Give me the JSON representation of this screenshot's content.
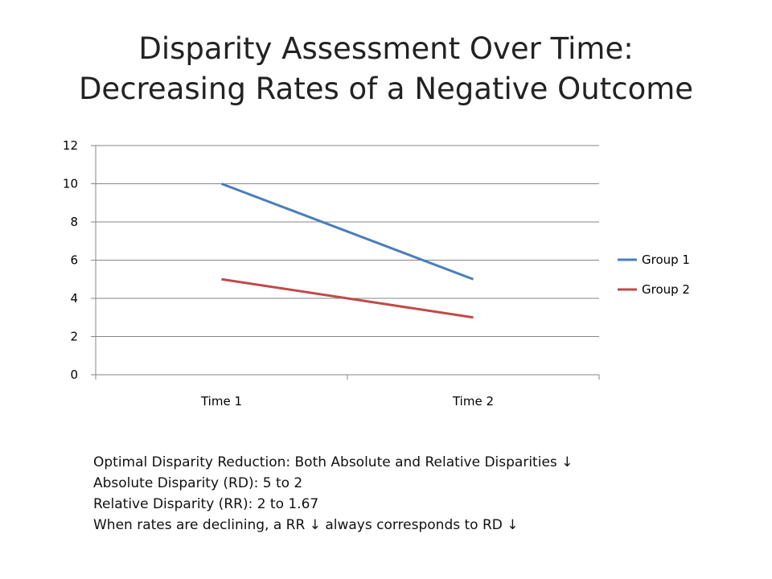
{
  "slide": {
    "title_line1": "Disparity Assessment Over Time:",
    "title_line2": "Decreasing Rates of a Negative Outcome"
  },
  "chart_data": {
    "type": "line",
    "categories": [
      "Time 1",
      "Time 2"
    ],
    "series": [
      {
        "name": "Group 1",
        "values": [
          10,
          5
        ],
        "color": "#4a7ebb"
      },
      {
        "name": "Group 2",
        "values": [
          5,
          3
        ],
        "color": "#be4b48"
      }
    ],
    "ylim": [
      0,
      12
    ],
    "yticks": [
      0,
      2,
      4,
      6,
      8,
      10,
      12
    ],
    "grid": true,
    "legend": "right"
  },
  "notes": [
    "Optimal Disparity Reduction: Both Absolute and Relative Disparities ↓",
    "Absolute Disparity (RD): 5 to 2",
    "Relative Disparity (RR): 2 to 1.67",
    "When rates are declining, a RR ↓ always corresponds to RD ↓"
  ]
}
